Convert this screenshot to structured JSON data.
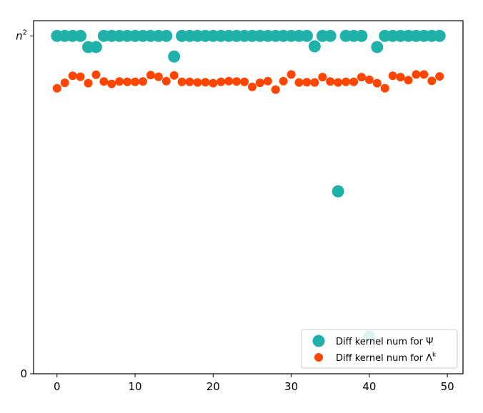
{
  "chart_data": {
    "type": "scatter",
    "title": "",
    "xlabel": "",
    "ylabel": "",
    "xlim": [
      -3,
      52
    ],
    "ylim": [
      0,
      1.045
    ],
    "x_ticks": [
      {
        "value": 0,
        "label": "0"
      },
      {
        "value": 10,
        "label": "10"
      },
      {
        "value": 20,
        "label": "20"
      },
      {
        "value": 30,
        "label": "30"
      },
      {
        "value": 40,
        "label": "40"
      },
      {
        "value": 50,
        "label": "50"
      }
    ],
    "y_ticks": [
      {
        "value": 0,
        "label": "0",
        "superscript": ""
      },
      {
        "value": 1,
        "label": "n",
        "superscript": "2"
      }
    ],
    "legend_position": "lower-right",
    "series": [
      {
        "name": "Diff kernel num for Ψ",
        "legend_main": "Diff kernel num for Ψ",
        "legend_sup": "",
        "color": "#20b2aa",
        "marker_size": "large",
        "x": [
          0,
          1,
          2,
          3,
          4,
          5,
          6,
          7,
          8,
          9,
          10,
          11,
          12,
          13,
          14,
          15,
          16,
          17,
          18,
          19,
          20,
          21,
          22,
          23,
          24,
          25,
          26,
          27,
          28,
          29,
          30,
          31,
          32,
          33,
          34,
          35,
          36,
          37,
          38,
          39,
          40,
          41,
          42,
          43,
          44,
          45,
          46,
          47,
          48,
          49
        ],
        "y": [
          1,
          1,
          1,
          1,
          0.967,
          0.967,
          1,
          1,
          1,
          1,
          1,
          1,
          1,
          1,
          1,
          0.939,
          1,
          1,
          1,
          1,
          1,
          1,
          1,
          1,
          1,
          1,
          1,
          1,
          1,
          1,
          1,
          1,
          1,
          0.969,
          1,
          1,
          0.54,
          1,
          1,
          1,
          0.11,
          0.967,
          1,
          1,
          1,
          1,
          1,
          1,
          1,
          1
        ]
      },
      {
        "name": "Diff kernel num for Λ^k",
        "legend_main": "Diff kernel num for Λ",
        "legend_sup": "k",
        "color": "#ff4500",
        "marker_size": "medium",
        "x": [
          0,
          1,
          2,
          3,
          4,
          5,
          6,
          7,
          8,
          9,
          10,
          11,
          12,
          13,
          14,
          15,
          16,
          17,
          18,
          19,
          20,
          21,
          22,
          23,
          24,
          25,
          26,
          27,
          28,
          29,
          30,
          31,
          32,
          33,
          34,
          35,
          36,
          37,
          38,
          39,
          40,
          41,
          42,
          43,
          44,
          45,
          46,
          47,
          48,
          49
        ],
        "y": [
          0.845,
          0.861,
          0.882,
          0.879,
          0.86,
          0.885,
          0.865,
          0.858,
          0.865,
          0.864,
          0.864,
          0.865,
          0.884,
          0.879,
          0.866,
          0.883,
          0.864,
          0.864,
          0.862,
          0.863,
          0.86,
          0.864,
          0.866,
          0.865,
          0.864,
          0.849,
          0.861,
          0.866,
          0.841,
          0.866,
          0.886,
          0.862,
          0.863,
          0.862,
          0.878,
          0.865,
          0.862,
          0.864,
          0.864,
          0.878,
          0.87,
          0.86,
          0.845,
          0.882,
          0.878,
          0.869,
          0.886,
          0.886,
          0.867,
          0.88
        ]
      }
    ]
  }
}
